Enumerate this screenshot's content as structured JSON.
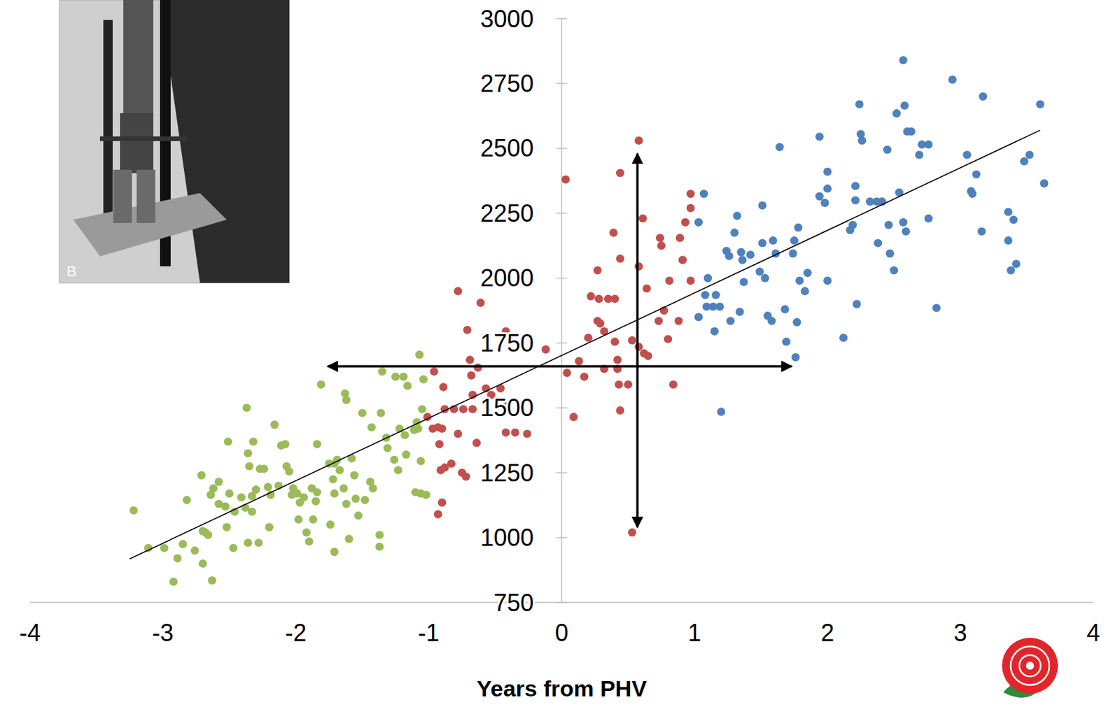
{
  "chart_data": {
    "type": "scatter",
    "x_label": "Years from PHV",
    "xlim": [
      -4,
      4
    ],
    "ylim": [
      750,
      3000
    ],
    "xticks": [
      -4,
      -3,
      -2,
      -1,
      0,
      1,
      2,
      3,
      4
    ],
    "yticks": [
      750,
      1000,
      1250,
      1500,
      1750,
      2000,
      2250,
      2500,
      2750,
      3000
    ],
    "grid": false,
    "marker": "circle",
    "annotations": [
      "B"
    ],
    "series": [
      {
        "color": "#9bbb59",
        "x": [
          -3.22,
          -3.11,
          -2.99,
          -2.89,
          -2.92,
          -2.85,
          -2.82,
          -2.63,
          -2.7,
          -2.7,
          -2.71,
          -2.76,
          -2.68,
          -2.66,
          -2.64,
          -2.62,
          -2.58,
          -2.58,
          -2.53,
          -2.5,
          -2.52,
          -2.51,
          -2.47,
          -2.46,
          -2.41,
          -2.38,
          -2.37,
          -2.36,
          -2.36,
          -2.35,
          -2.32,
          -2.33,
          -2.33,
          -2.3,
          -2.28,
          -2.27,
          -2.24,
          -2.21,
          -2.2,
          -2.19,
          -2.16,
          -2.13,
          -2.11,
          -2.08,
          -2.07,
          -2.05,
          -2.03,
          -2.02,
          -1.99,
          -1.98,
          -1.97,
          -1.94,
          -1.92,
          -1.9,
          -1.88,
          -1.87,
          -1.84,
          -1.81,
          -1.84,
          -1.85,
          -1.74,
          -1.71,
          -1.71,
          -1.72,
          -1.75,
          -1.71,
          -1.69,
          -1.67,
          -1.64,
          -1.63,
          -1.62,
          -1.62,
          -1.6,
          -1.58,
          -1.56,
          -1.55,
          -1.53,
          -1.5,
          -1.48,
          -1.44,
          -1.43,
          -1.42,
          -1.37,
          -1.37,
          -1.36,
          -1.35,
          -1.32,
          -1.31,
          -1.26,
          -1.25,
          -1.23,
          -1.22,
          -1.19,
          -1.18,
          -1.17,
          -1.16,
          -1.11,
          -1.09,
          -1.07,
          -1.06,
          -1.05,
          -1.04,
          -1.02,
          -1.06,
          -1.08,
          -1.1
        ],
        "values": [
          1105,
          960,
          960,
          920,
          830,
          975,
          1145,
          835,
          900,
          1025,
          1240,
          950,
          1020,
          1010,
          1165,
          1190,
          1215,
          1130,
          1120,
          1170,
          1040,
          1370,
          960,
          1100,
          1155,
          1115,
          1500,
          1325,
          980,
          1275,
          1370,
          1100,
          1160,
          1185,
          980,
          1265,
          1265,
          1195,
          1040,
          1165,
          1435,
          1200,
          1355,
          1360,
          1275,
          1255,
          1165,
          1190,
          1170,
          1070,
          1135,
          1155,
          1020,
          985,
          1190,
          1070,
          1360,
          1590,
          1175,
          1140,
          1050,
          945,
          1170,
          1225,
          1285,
          1285,
          1300,
          1260,
          1190,
          1555,
          1530,
          1130,
          995,
          1305,
          1240,
          1150,
          1085,
          1480,
          1145,
          1215,
          1425,
          1190,
          1010,
          965,
          1480,
          1640,
          1385,
          1345,
          1300,
          1620,
          1260,
          1420,
          1620,
          1395,
          1320,
          1585,
          1415,
          1445,
          1705,
          1295,
          1495,
          1610,
          1165,
          1170,
          1420,
          1175
        ]
      },
      {
        "color": "#c0504d",
        "x": [
          -0.89,
          -0.96,
          -1.01,
          -0.97,
          -0.93,
          -0.92,
          -0.9,
          -0.88,
          -0.91,
          -0.88,
          -0.93,
          -0.9,
          -0.83,
          -0.81,
          -0.78,
          -0.78,
          -0.74,
          -0.75,
          -0.72,
          -0.71,
          -0.69,
          -0.68,
          -0.67,
          -0.67,
          -0.64,
          -0.63,
          -0.61,
          -0.57,
          -0.53,
          -0.46,
          -0.42,
          -0.42,
          -0.41,
          -0.35,
          -0.26,
          -0.12,
          0.03,
          0.04,
          0.09,
          0.13,
          0.17,
          0.2,
          0.22,
          0.27,
          0.27,
          0.28,
          0.29,
          0.32,
          0.32,
          0.35,
          0.39,
          0.4,
          0.4,
          0.42,
          0.42,
          0.43,
          0.44,
          0.44,
          0.44,
          0.5,
          0.53,
          0.53,
          0.58,
          0.58,
          0.58,
          0.61,
          0.62,
          0.64,
          0.65,
          0.74,
          0.75,
          0.73,
          0.77,
          0.8,
          0.81,
          0.84,
          0.88,
          0.89,
          0.91,
          0.93,
          0.97,
          0.97,
          0.97
        ],
        "values": [
          1580,
          1640,
          1465,
          1420,
          1425,
          1360,
          1420,
          1495,
          1260,
          1270,
          1090,
          1135,
          1285,
          1495,
          1400,
          1950,
          1495,
          1250,
          1235,
          1800,
          1685,
          1625,
          1550,
          1495,
          1365,
          1655,
          1905,
          1575,
          1550,
          1575,
          1795,
          1405,
          1510,
          1405,
          1400,
          1725,
          2380,
          1635,
          1465,
          1680,
          1620,
          1770,
          1930,
          2030,
          1835,
          1920,
          1825,
          1795,
          1650,
          1920,
          2175,
          1920,
          1755,
          1685,
          1650,
          1590,
          1490,
          2405,
          2075,
          1590,
          1020,
          1760,
          1735,
          2530,
          2045,
          2230,
          1710,
          1960,
          1700,
          2155,
          2125,
          1835,
          1875,
          1765,
          1990,
          1590,
          1835,
          2155,
          2070,
          2215,
          2325,
          2270,
          1990
        ]
      },
      {
        "color": "#4f81bd",
        "x": [
          1.03,
          1.07,
          1.03,
          1.1,
          1.08,
          1.09,
          1.14,
          1.16,
          1.15,
          1.19,
          1.2,
          1.24,
          1.26,
          1.27,
          1.3,
          1.32,
          1.34,
          1.35,
          1.36,
          1.37,
          1.42,
          1.49,
          1.51,
          1.51,
          1.53,
          1.55,
          1.58,
          1.59,
          1.61,
          1.64,
          1.68,
          1.69,
          1.74,
          1.75,
          1.76,
          1.77,
          1.78,
          1.79,
          1.83,
          1.85,
          1.94,
          1.94,
          1.98,
          2.0,
          2.0,
          2.0,
          2.12,
          2.17,
          2.19,
          2.21,
          2.21,
          2.22,
          2.24,
          2.25,
          2.26,
          2.32,
          2.37,
          2.38,
          2.41,
          2.45,
          2.46,
          2.47,
          2.5,
          2.52,
          2.54,
          2.57,
          2.57,
          2.58,
          2.59,
          2.6,
          2.63,
          2.69,
          2.71,
          2.76,
          2.76,
          2.82,
          2.94,
          3.05,
          3.08,
          3.09,
          3.12,
          3.16,
          3.17,
          3.36,
          3.36,
          3.38,
          3.4,
          3.42,
          3.48,
          3.52,
          3.6,
          3.63
        ],
        "values": [
          1850,
          2325,
          2215,
          2000,
          1935,
          1890,
          1890,
          1935,
          1795,
          1890,
          1485,
          2105,
          2085,
          1835,
          2175,
          2240,
          1870,
          2100,
          2070,
          1985,
          2090,
          2025,
          2280,
          2135,
          2000,
          1855,
          1835,
          2145,
          2095,
          2505,
          1880,
          1755,
          2095,
          2145,
          1695,
          1830,
          2195,
          1990,
          1950,
          2020,
          2315,
          2545,
          2290,
          2345,
          2410,
          1990,
          1770,
          2185,
          2205,
          2355,
          2300,
          1900,
          2670,
          2555,
          2530,
          2295,
          2295,
          2135,
          2295,
          2495,
          2205,
          2095,
          2030,
          2635,
          2330,
          2840,
          2215,
          2665,
          2180,
          2565,
          2565,
          2475,
          2515,
          2515,
          2230,
          1885,
          2765,
          2475,
          2335,
          2325,
          2400,
          2180,
          2700,
          2255,
          2145,
          2030,
          2225,
          2055,
          2450,
          2475,
          2670,
          2365
        ]
      }
    ],
    "trend_line": {
      "x": [
        -3.25,
        3.6
      ],
      "values": [
        918,
        2570
      ]
    },
    "arrows": [
      {
        "x": [
          -1.76,
          1.73
        ],
        "values": [
          1660,
          1660
        ]
      },
      {
        "x": [
          0.57,
          0.57
        ],
        "values": [
          1040,
          2480
        ]
      }
    ]
  }
}
